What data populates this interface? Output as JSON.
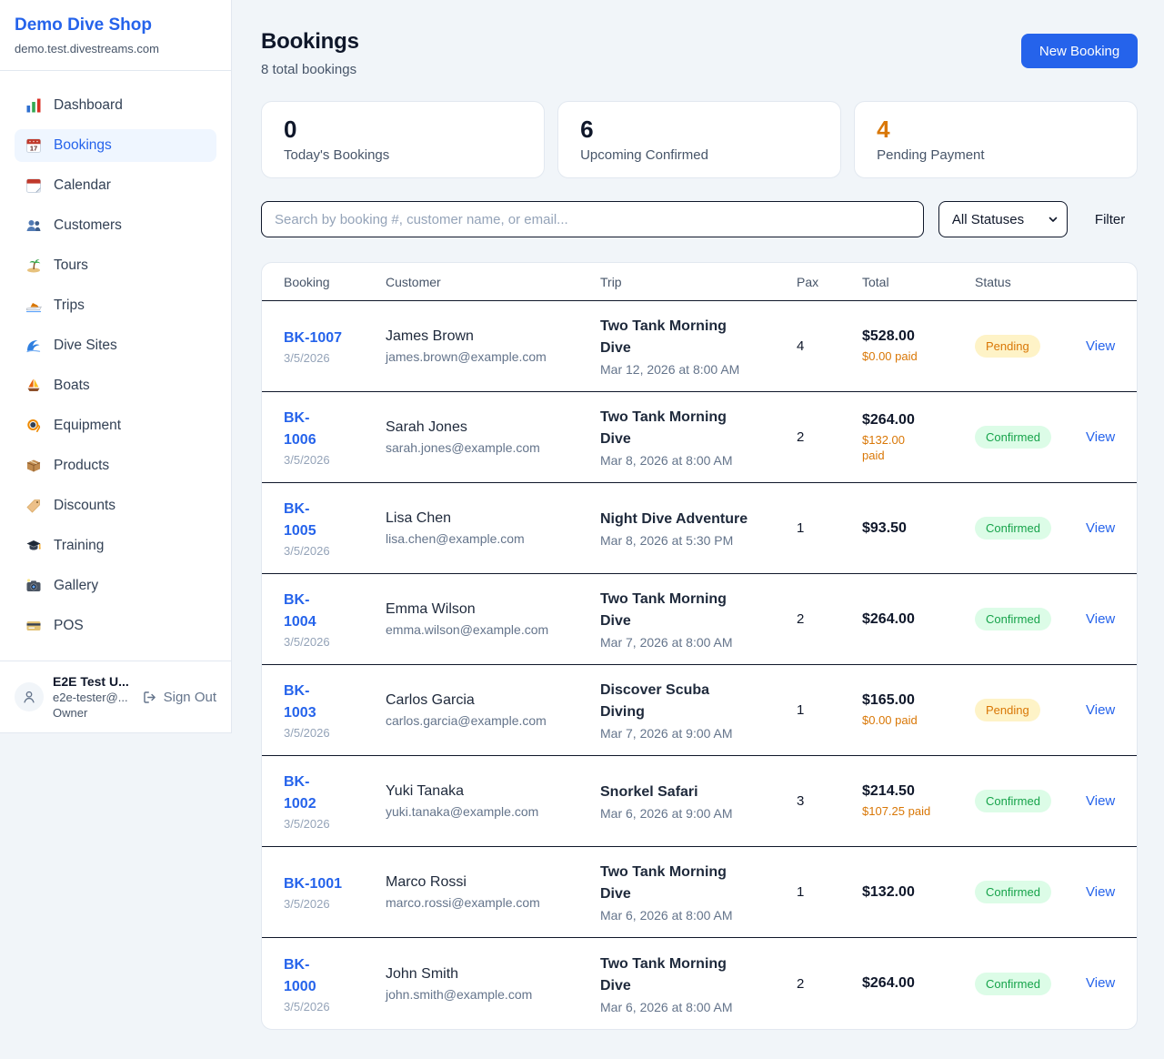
{
  "brand": {
    "name": "Demo Dive Shop",
    "domain": "demo.test.divestreams.com"
  },
  "sidebar": {
    "items": [
      {
        "label": "Dashboard",
        "icon": "bar-chart",
        "active": false
      },
      {
        "label": "Bookings",
        "icon": "calendar-date",
        "active": true
      },
      {
        "label": "Calendar",
        "icon": "calendar-tearoff",
        "active": false
      },
      {
        "label": "Customers",
        "icon": "people",
        "active": false
      },
      {
        "label": "Tours",
        "icon": "island",
        "active": false
      },
      {
        "label": "Trips",
        "icon": "speedboat",
        "active": false
      },
      {
        "label": "Dive Sites",
        "icon": "wave",
        "active": false
      },
      {
        "label": "Boats",
        "icon": "sailboat",
        "active": false
      },
      {
        "label": "Equipment",
        "icon": "dive-mask",
        "active": false
      },
      {
        "label": "Products",
        "icon": "package",
        "active": false
      },
      {
        "label": "Discounts",
        "icon": "tag",
        "active": false
      },
      {
        "label": "Training",
        "icon": "graduation-cap",
        "active": false
      },
      {
        "label": "Gallery",
        "icon": "camera-flash",
        "active": false
      },
      {
        "label": "POS",
        "icon": "credit-card",
        "active": false
      }
    ]
  },
  "user": {
    "name": "E2E Test U...",
    "email": "e2e-tester@...",
    "role": "Owner",
    "sign_out": "Sign Out"
  },
  "header": {
    "title": "Bookings",
    "subtitle": "8 total bookings",
    "new_booking_label": "New Booking"
  },
  "stats": [
    {
      "value": "0",
      "label": "Today's Bookings",
      "accent": "default"
    },
    {
      "value": "6",
      "label": "Upcoming Confirmed",
      "accent": "default"
    },
    {
      "value": "4",
      "label": "Pending Payment",
      "accent": "orange"
    }
  ],
  "filters": {
    "search_placeholder": "Search by booking #, customer name, or email...",
    "status_selected": "All Statuses",
    "filter_label": "Filter"
  },
  "table": {
    "columns": [
      "Booking",
      "Customer",
      "Trip",
      "Pax",
      "Total",
      "Status"
    ],
    "rows": [
      {
        "id": "BK-1007",
        "date": "3/5/2026",
        "customer": "James Brown",
        "email": "james.brown@example.com",
        "trip": "Two Tank Morning\nDive",
        "trip_when": "Mar 12, 2026 at 8:00 AM",
        "pax": "4",
        "total": "$528.00",
        "paid": "$0.00 paid",
        "status": "Pending",
        "view": "View"
      },
      {
        "id": "BK-\n1006",
        "date": "3/5/2026",
        "customer": "Sarah Jones",
        "email": "sarah.jones@example.com",
        "trip": "Two Tank Morning\nDive",
        "trip_when": "Mar 8, 2026 at 8:00 AM",
        "pax": "2",
        "total": "$264.00",
        "paid": "$132.00\npaid",
        "status": "Confirmed",
        "view": "View"
      },
      {
        "id": "BK-\n1005",
        "date": "3/5/2026",
        "customer": "Lisa Chen",
        "email": "lisa.chen@example.com",
        "trip": "Night Dive Adventure",
        "trip_when": "Mar 8, 2026 at 5:30 PM",
        "pax": "1",
        "total": "$93.50",
        "paid": "",
        "status": "Confirmed",
        "view": "View"
      },
      {
        "id": "BK-\n1004",
        "date": "3/5/2026",
        "customer": "Emma Wilson",
        "email": "emma.wilson@example.com",
        "trip": "Two Tank Morning\nDive",
        "trip_when": "Mar 7, 2026 at 8:00 AM",
        "pax": "2",
        "total": "$264.00",
        "paid": "",
        "status": "Confirmed",
        "view": "View"
      },
      {
        "id": "BK-\n1003",
        "date": "3/5/2026",
        "customer": "Carlos Garcia",
        "email": "carlos.garcia@example.com",
        "trip": "Discover Scuba\nDiving",
        "trip_when": "Mar 7, 2026 at 9:00 AM",
        "pax": "1",
        "total": "$165.00",
        "paid": "$0.00 paid",
        "status": "Pending",
        "view": "View"
      },
      {
        "id": "BK-\n1002",
        "date": "3/5/2026",
        "customer": "Yuki Tanaka",
        "email": "yuki.tanaka@example.com",
        "trip": "Snorkel Safari",
        "trip_when": "Mar 6, 2026 at 9:00 AM",
        "pax": "3",
        "total": "$214.50",
        "paid": "$107.25 paid",
        "status": "Confirmed",
        "view": "View"
      },
      {
        "id": "BK-1001",
        "date": "3/5/2026",
        "customer": "Marco Rossi",
        "email": "marco.rossi@example.com",
        "trip": "Two Tank Morning\nDive",
        "trip_when": "Mar 6, 2026 at 8:00 AM",
        "pax": "1",
        "total": "$132.00",
        "paid": "",
        "status": "Confirmed",
        "view": "View"
      },
      {
        "id": "BK-\n1000",
        "date": "3/5/2026",
        "customer": "John Smith",
        "email": "john.smith@example.com",
        "trip": "Two Tank Morning\nDive",
        "trip_when": "Mar 6, 2026 at 8:00 AM",
        "pax": "2",
        "total": "$264.00",
        "paid": "",
        "status": "Confirmed",
        "view": "View"
      }
    ]
  },
  "colors": {
    "accent_blue": "#2563eb",
    "active_nav_bg": "#eff6ff",
    "pending_fg": "#d97706",
    "pending_bg": "#fef3c7",
    "confirmed_fg": "#16a34a",
    "confirmed_bg": "#dcfce7",
    "paid_orange": "#d97706",
    "page_bg": "#f1f5f9"
  }
}
